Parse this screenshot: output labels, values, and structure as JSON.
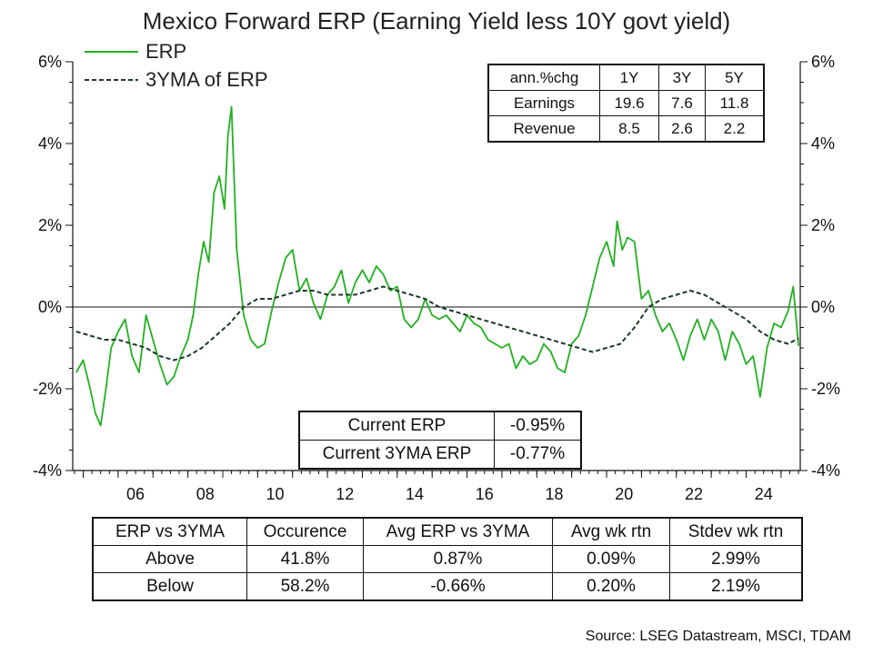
{
  "chart_data": {
    "type": "line",
    "title": "Mexico Forward ERP (Earning Yield less 10Y govt yield)",
    "y_ticks": [
      "6%",
      "4%",
      "2%",
      "0%",
      "-2%",
      "-4%"
    ],
    "y_tick_values": [
      6,
      4,
      2,
      0,
      -2,
      -4
    ],
    "ylim": [
      -4,
      6
    ],
    "x_ticks": [
      "06",
      "08",
      "10",
      "12",
      "14",
      "16",
      "18",
      "20",
      "22",
      "24"
    ],
    "x_tick_values": [
      2006,
      2008,
      2010,
      2012,
      2014,
      2016,
      2018,
      2020,
      2022,
      2024
    ],
    "xlim": [
      2004.7,
      2025.55
    ],
    "dual_y_axis": true,
    "zero_line": true,
    "legend_position": "top-left",
    "series": [
      {
        "name": "ERP",
        "color": "#22b022",
        "style": "solid",
        "x": [
          2004.8,
          2005.0,
          2005.2,
          2005.35,
          2005.5,
          2005.65,
          2005.8,
          2006.0,
          2006.2,
          2006.4,
          2006.6,
          2006.8,
          2007.0,
          2007.2,
          2007.4,
          2007.6,
          2007.8,
          2008.0,
          2008.15,
          2008.3,
          2008.45,
          2008.6,
          2008.75,
          2008.9,
          2009.05,
          2009.15,
          2009.25,
          2009.4,
          2009.6,
          2009.8,
          2010.0,
          2010.2,
          2010.4,
          2010.6,
          2010.8,
          2011.0,
          2011.2,
          2011.4,
          2011.6,
          2011.8,
          2012.0,
          2012.2,
          2012.4,
          2012.6,
          2012.8,
          2013.0,
          2013.2,
          2013.4,
          2013.6,
          2013.8,
          2014.0,
          2014.2,
          2014.4,
          2014.6,
          2014.8,
          2015.0,
          2015.2,
          2015.4,
          2015.6,
          2015.8,
          2016.0,
          2016.2,
          2016.4,
          2016.6,
          2016.8,
          2017.0,
          2017.2,
          2017.4,
          2017.6,
          2017.8,
          2018.0,
          2018.2,
          2018.4,
          2018.6,
          2018.8,
          2019.0,
          2019.2,
          2019.4,
          2019.6,
          2019.8,
          2020.0,
          2020.2,
          2020.3,
          2020.45,
          2020.6,
          2020.8,
          2021.0,
          2021.2,
          2021.4,
          2021.6,
          2021.8,
          2022.0,
          2022.2,
          2022.4,
          2022.6,
          2022.8,
          2023.0,
          2023.2,
          2023.4,
          2023.6,
          2023.8,
          2024.0,
          2024.2,
          2024.4,
          2024.6,
          2024.8,
          2025.0,
          2025.2,
          2025.35,
          2025.5
        ],
        "y": [
          -1.6,
          -1.3,
          -2.0,
          -2.6,
          -2.9,
          -2.0,
          -1.0,
          -0.6,
          -0.3,
          -1.2,
          -1.6,
          -0.2,
          -0.8,
          -1.4,
          -1.9,
          -1.7,
          -1.2,
          -0.8,
          -0.2,
          0.8,
          1.6,
          1.1,
          2.8,
          3.2,
          2.4,
          4.2,
          4.9,
          1.4,
          -0.2,
          -0.8,
          -1.0,
          -0.9,
          -0.1,
          0.6,
          1.2,
          1.4,
          0.4,
          0.7,
          0.1,
          -0.3,
          0.3,
          0.5,
          0.9,
          0.1,
          0.6,
          0.9,
          0.6,
          1.0,
          0.8,
          0.4,
          0.5,
          -0.3,
          -0.5,
          -0.3,
          0.2,
          -0.2,
          -0.3,
          -0.2,
          -0.4,
          -0.6,
          -0.2,
          -0.4,
          -0.5,
          -0.8,
          -0.9,
          -1.0,
          -0.9,
          -1.5,
          -1.2,
          -1.4,
          -1.3,
          -0.9,
          -1.1,
          -1.5,
          -1.6,
          -0.9,
          -0.7,
          -0.2,
          0.5,
          1.2,
          1.6,
          1.0,
          2.1,
          1.4,
          1.7,
          1.6,
          0.2,
          0.4,
          -0.2,
          -0.6,
          -0.4,
          -0.8,
          -1.3,
          -0.7,
          -0.3,
          -0.8,
          -0.3,
          -0.6,
          -1.3,
          -0.6,
          -0.9,
          -1.4,
          -1.2,
          -2.2,
          -1.0,
          -0.4,
          -0.5,
          -0.1,
          0.5,
          -0.95
        ]
      },
      {
        "name": "3YMA of ERP",
        "color": "#1d3a25",
        "style": "dashed",
        "x": [
          2004.8,
          2005.2,
          2005.6,
          2006.0,
          2006.4,
          2006.8,
          2007.2,
          2007.6,
          2008.0,
          2008.4,
          2008.8,
          2009.2,
          2009.6,
          2010.0,
          2010.4,
          2010.8,
          2011.2,
          2011.6,
          2012.0,
          2012.4,
          2012.8,
          2013.2,
          2013.6,
          2014.0,
          2014.4,
          2014.8,
          2015.2,
          2015.6,
          2016.0,
          2016.4,
          2016.8,
          2017.2,
          2017.6,
          2018.0,
          2018.4,
          2018.8,
          2019.2,
          2019.6,
          2020.0,
          2020.4,
          2020.8,
          2021.2,
          2021.6,
          2022.0,
          2022.4,
          2022.8,
          2023.2,
          2023.6,
          2024.0,
          2024.4,
          2024.8,
          2025.2,
          2025.5
        ],
        "y": [
          -0.6,
          -0.7,
          -0.8,
          -0.8,
          -0.9,
          -1.0,
          -1.2,
          -1.3,
          -1.2,
          -1.0,
          -0.7,
          -0.4,
          0.0,
          0.2,
          0.2,
          0.3,
          0.4,
          0.4,
          0.3,
          0.3,
          0.3,
          0.4,
          0.5,
          0.4,
          0.3,
          0.2,
          0.0,
          -0.1,
          -0.2,
          -0.3,
          -0.4,
          -0.5,
          -0.6,
          -0.7,
          -0.8,
          -0.9,
          -1.0,
          -1.1,
          -1.0,
          -0.9,
          -0.5,
          0.0,
          0.2,
          0.3,
          0.4,
          0.3,
          0.1,
          -0.1,
          -0.3,
          -0.6,
          -0.8,
          -0.9,
          -0.77
        ]
      }
    ]
  },
  "stats_table": {
    "header": [
      "ann.%chg",
      "1Y",
      "3Y",
      "5Y"
    ],
    "rows": [
      [
        "Earnings",
        "19.6",
        "7.6",
        "11.8"
      ],
      [
        "Revenue",
        "8.5",
        "2.6",
        "2.2"
      ]
    ]
  },
  "current_table": {
    "rows": [
      [
        "Current ERP",
        "-0.95%"
      ],
      [
        "Current 3YMA ERP",
        "-0.77%"
      ]
    ]
  },
  "summary_table": {
    "header": [
      "ERP vs 3YMA",
      "Occurence",
      "Avg ERP vs 3YMA",
      "Avg wk rtn",
      "Stdev wk rtn"
    ],
    "rows": [
      [
        "Above",
        "41.8%",
        "0.87%",
        "0.09%",
        "2.99%"
      ],
      [
        "Below",
        "58.2%",
        "-0.66%",
        "0.20%",
        "2.19%"
      ]
    ]
  },
  "source": "Source: LSEG Datastream, MSCI, TDAM"
}
